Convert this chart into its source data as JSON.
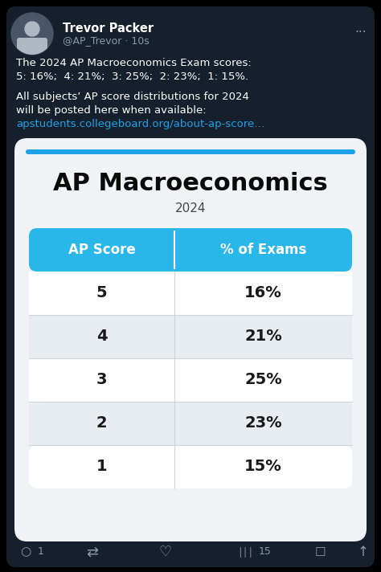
{
  "bg_color": "#000000",
  "tweet_bg": "#16202c",
  "card_bg": "#f0f2f5",
  "header_name": "Trevor Packer",
  "header_handle": "@AP_Trevor · 10s",
  "header_dots": "...",
  "tweet_line1": "The 2024 AP Macroeconomics Exam scores:",
  "tweet_line2": "5: 16%;  4: 21%;  3: 25%;  2: 23%;  1: 15%.",
  "tweet_line3": "All subjects’ AP score distributions for 2024",
  "tweet_line4": "will be posted here when available:",
  "tweet_link": "apstudents.collegeboard.org/about-ap-score…",
  "accent_color": "#1da1e8",
  "card_title": "AP Macroeconomics",
  "card_year": "2024",
  "table_header_bg": "#29b6e8",
  "table_header_text": "#ffffff",
  "table_col1_header": "AP Score",
  "table_col2_header": "% of Exams",
  "scores": [
    "5",
    "4",
    "3",
    "2",
    "1"
  ],
  "percentages": [
    "16%",
    "21%",
    "25%",
    "23%",
    "15%"
  ],
  "row_bg_odd": "#ffffff",
  "row_bg_even": "#e8edf2",
  "row_text_color": "#1a1a1a",
  "divider_line_color": "#d0d5da",
  "bottom_icons_color": "#8899a6",
  "bottom_icon1": "1",
  "bottom_icon2": "15",
  "profile_bg": "#4a5568",
  "profile_face": "#b0b8c4"
}
